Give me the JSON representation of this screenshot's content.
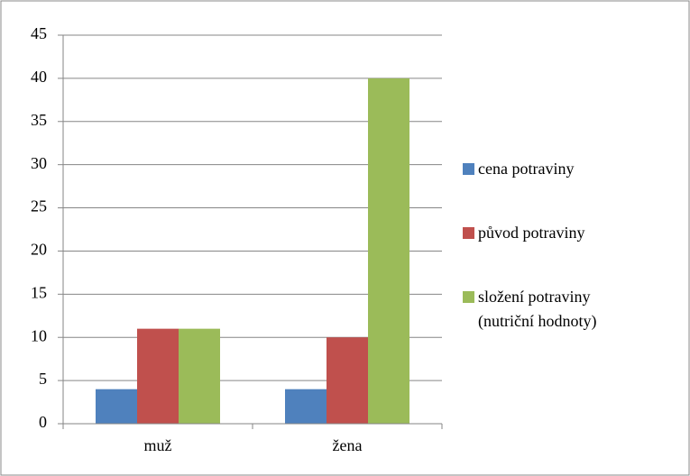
{
  "chart_data": {
    "type": "bar",
    "categories": [
      "muž",
      "žena"
    ],
    "series": [
      {
        "name": "cena potraviny",
        "color": "#4f81bd",
        "values": [
          4,
          4
        ]
      },
      {
        "name": "původ potraviny",
        "color": "#c0504d",
        "values": [
          11,
          10
        ]
      },
      {
        "name": "složení potraviny (nutriční hodnoty)",
        "color": "#9bbb59",
        "values": [
          11,
          40
        ]
      }
    ],
    "ylim": [
      0,
      45
    ],
    "yticks": [
      0,
      5,
      10,
      15,
      20,
      25,
      30,
      35,
      40,
      45
    ],
    "grid": true,
    "legend": "right"
  }
}
